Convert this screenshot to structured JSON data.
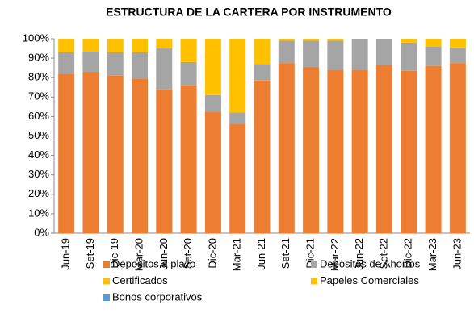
{
  "chart_data": {
    "type": "stacked_bar",
    "title": "ESTRUCTURA DE LA CARTERA POR INSTRUMENTO",
    "categories": [
      "Jun-19",
      "Set-19",
      "Dic-19",
      "Mar-20",
      "Jun-20",
      "Set-20",
      "Dic-20",
      "Mar-21",
      "Jun-21",
      "Set-21",
      "Dic-21",
      "Mar-22",
      "Jun-22",
      "Set-22",
      "Dic-22",
      "Mar-23",
      "Jun-23"
    ],
    "series": [
      {
        "name": "Depositos a plazo",
        "color": "#ed7d31",
        "values": [
          82,
          83,
          81,
          79.5,
          74,
          76,
          62.5,
          56,
          78.5,
          87.5,
          85.5,
          84,
          84,
          86.5,
          83.5,
          86,
          87.5
        ]
      },
      {
        "name": "Depositos de Ahorros",
        "color": "#a5a5a5",
        "values": [
          11,
          10.5,
          12,
          13.5,
          21,
          12,
          8.5,
          6,
          8.5,
          11.5,
          13.5,
          15,
          16,
          13.5,
          14.5,
          10,
          8
        ]
      },
      {
        "name": "Certificados",
        "color": "#ffc000",
        "values": [
          7,
          6.5,
          7,
          7,
          5,
          12,
          29,
          38,
          13,
          1,
          1,
          1,
          0,
          0,
          2,
          4,
          4.5
        ]
      },
      {
        "name": "Papeles Comerciales",
        "color": "#ffc000",
        "values": [
          0,
          0,
          0,
          0,
          0,
          0,
          0,
          0,
          0,
          0,
          0,
          0,
          0,
          0,
          0,
          0,
          0
        ]
      },
      {
        "name": "Bonos corporativos",
        "color": "#5b9bd5",
        "values": [
          0,
          0,
          0,
          0,
          0,
          0,
          0,
          0,
          0,
          0,
          0,
          0,
          0,
          0,
          0,
          0,
          0
        ]
      }
    ],
    "ylim": [
      0,
      100
    ],
    "yticks": [
      {
        "value": 0,
        "label": "0%"
      },
      {
        "value": 10,
        "label": "10%"
      },
      {
        "value": 20,
        "label": "20%"
      },
      {
        "value": 30,
        "label": "30%"
      },
      {
        "value": 40,
        "label": "40%"
      },
      {
        "value": 50,
        "label": "50%"
      },
      {
        "value": 60,
        "label": "60%"
      },
      {
        "value": 70,
        "label": "70%"
      },
      {
        "value": 80,
        "label": "80%"
      },
      {
        "value": 90,
        "label": "90%"
      },
      {
        "value": 100,
        "label": "100%"
      }
    ],
    "legend": "bottom"
  }
}
